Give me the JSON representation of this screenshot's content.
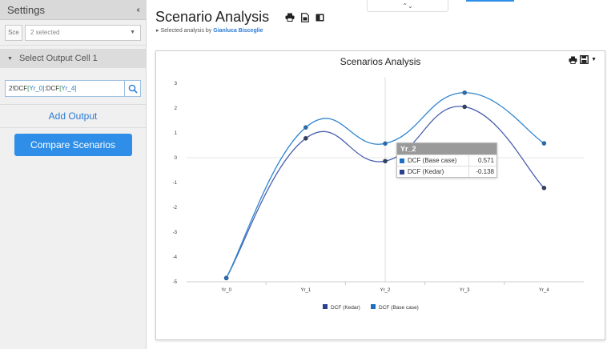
{
  "sidebar": {
    "title": "Settings",
    "collapse_glyph": "‹‹",
    "scenario_tag": "Sce",
    "scenario_select": "2 selected",
    "output_section": "Select Output Cell 1",
    "cell_ref": {
      "prefix": "2!",
      "p1": "DCF",
      "b1o": "[",
      "y1": "Yr_0",
      "b1c": "]",
      "colon": ":",
      "p2": "DCF",
      "b2o": "[",
      "y2": "Yr_4",
      "b2c": "]"
    },
    "add_output": "Add Output",
    "compare_button": "Compare Scenarios"
  },
  "top_handle_glyph": "⌃⌄",
  "header": {
    "title": "Scenario Analysis",
    "subtitle_prefix": "Selected analysis by",
    "author": "Gianluca Bisceglie"
  },
  "chart_panel": {
    "title": "Scenarios Analysis"
  },
  "colors": {
    "base_case": "#2f86d1",
    "kedar": "#4a5fb0",
    "accent": "#2e8ee8",
    "tooltip_base_swatch": "#1e6fc4",
    "tooltip_kedar_swatch": "#2b3f8f"
  },
  "chart_data": {
    "type": "line",
    "title": "Scenarios Analysis",
    "categories": [
      "Yr_0",
      "Yr_1",
      "Yr_2",
      "Yr_3",
      "Yr_4"
    ],
    "ylim": [
      -5,
      3
    ],
    "yticks": [
      "3",
      "2",
      "1",
      "0",
      "-1",
      "-2",
      "-3",
      "-4",
      "-5"
    ],
    "ytick_values": [
      3,
      2,
      1,
      0,
      -1,
      -2,
      -3,
      -4,
      -5
    ],
    "grid": "y-zero-line",
    "legend_position": "bottom",
    "series": [
      {
        "name": "DCF (Kedar)",
        "values": [
          -4.85,
          0.78,
          -0.138,
          2.05,
          -1.22
        ]
      },
      {
        "name": "DCF (Base case)",
        "values": [
          -4.85,
          1.22,
          0.571,
          2.62,
          0.58
        ]
      }
    ],
    "tooltip": {
      "category": "Yr_2",
      "rows": [
        {
          "name": "DCF (Base case)",
          "value": "0.571"
        },
        {
          "name": "DCF (Kedar)",
          "value": "-0.138"
        }
      ]
    }
  }
}
